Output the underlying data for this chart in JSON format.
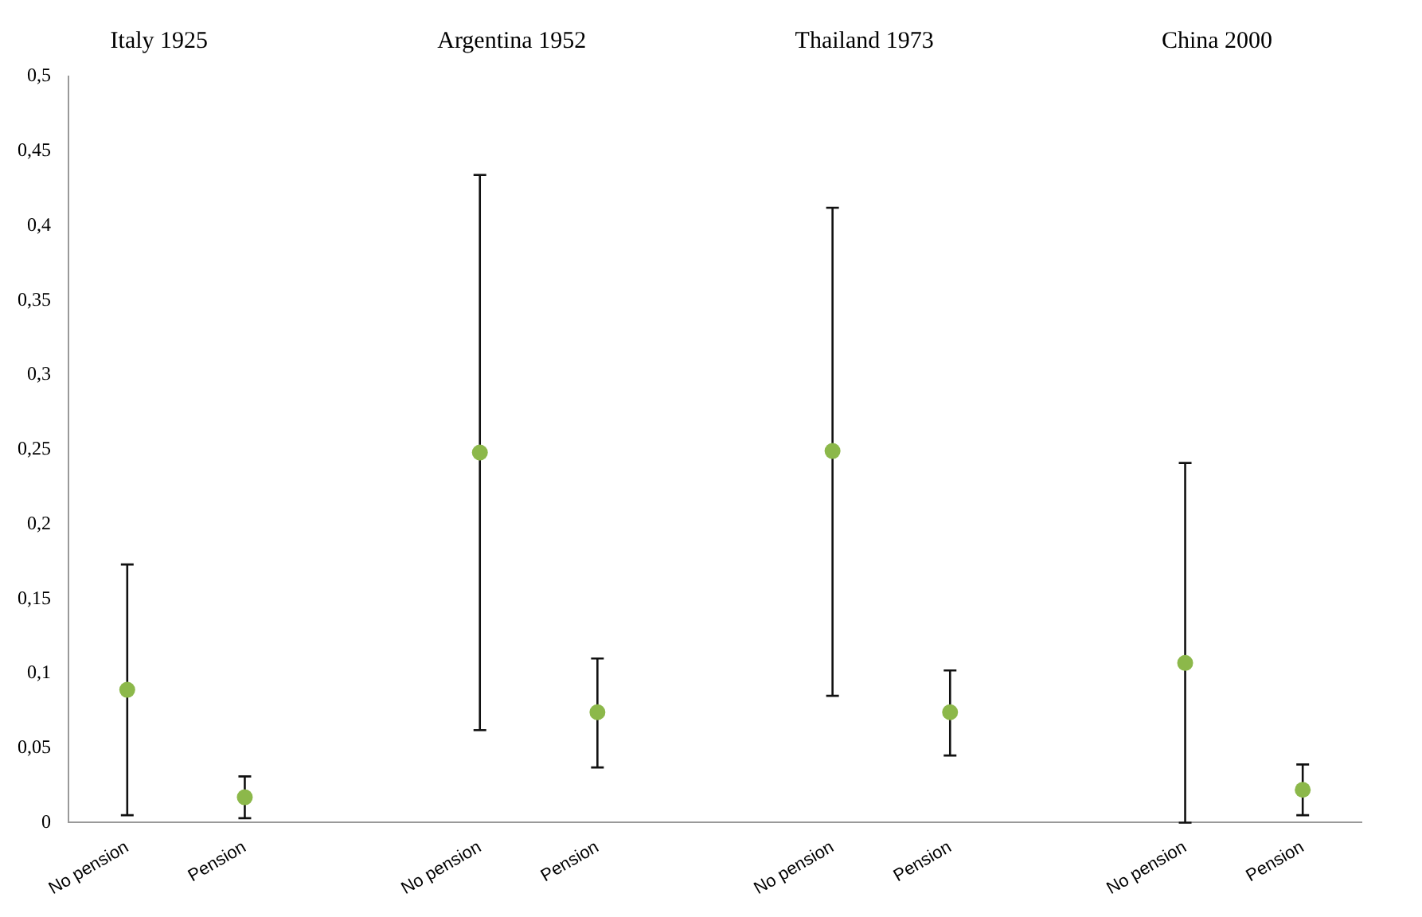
{
  "chart_data": {
    "type": "scatter",
    "categories": [
      "No pension",
      "Pension",
      null,
      "No pension",
      "Pension",
      null,
      "No pension",
      "Pension",
      null,
      "No pension",
      "Pension"
    ],
    "series": [
      {
        "color": "#8cb84a",
        "values": [
          0.089,
          0.017,
          null,
          0.248,
          0.074,
          null,
          0.249,
          0.074,
          null,
          0.107,
          0.022
        ],
        "errors": [
          [
            0.005,
            0.173
          ],
          [
            0.003,
            0.031
          ],
          null,
          [
            0.062,
            0.434
          ],
          [
            0.037,
            0.11
          ],
          null,
          [
            0.085,
            0.412
          ],
          [
            0.045,
            0.102
          ],
          null,
          [
            0.0,
            0.241
          ],
          [
            0.005,
            0.039
          ]
        ]
      }
    ],
    "ylim": [
      0,
      0.5
    ],
    "yticks": [
      0,
      {
        "value": 0.05,
        "label": "0,05"
      },
      {
        "value": 0.1,
        "label": "0,1"
      },
      {
        "value": 0.15,
        "label": "0,15"
      },
      {
        "value": 0.2,
        "label": "0,2"
      },
      {
        "value": 0.25,
        "label": "0,25"
      },
      {
        "value": 0.3,
        "label": "0,3"
      },
      {
        "value": 0.35,
        "label": "0,35"
      },
      {
        "value": 0.4,
        "label": "0,4"
      },
      {
        "value": 0.45,
        "label": "0,45"
      },
      {
        "value": 0.5,
        "label": "0,5"
      }
    ],
    "annotations": [
      "Italy 1925",
      "Argentina 1952",
      "Thailand 1973",
      "China 2000"
    ],
    "grid": false,
    "legend": false,
    "marker": "circle"
  }
}
